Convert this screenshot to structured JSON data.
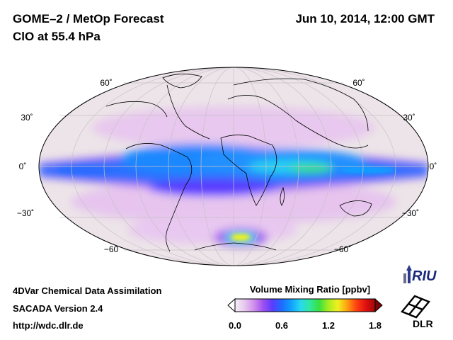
{
  "header": {
    "product_title": "GOME–2 / MetOp Forecast",
    "species_level": "ClO at 55.4 hPa",
    "datetime": "Jun 10, 2014, 12:00 GMT"
  },
  "map": {
    "projection": "Mollweide",
    "latitude_labels_left": [
      "60˚",
      "30˚",
      "0˚",
      "−30˚",
      "−60"
    ],
    "latitude_labels_right": [
      "60˚",
      "30˚",
      "0˚",
      "−30˚",
      "−60˚"
    ]
  },
  "footer": {
    "line1": "4DVar Chemical Data Assimilation",
    "line2": "SACADA Version 2.4",
    "line3": "http://wdc.dlr.de"
  },
  "colorbar": {
    "title": "Volume Mixing Ratio [ppbv]",
    "ticks": [
      "0.0",
      "0.6",
      "1.2",
      "1.8"
    ],
    "colors": [
      "#f4f0f6",
      "#e8c8f0",
      "#d090ec",
      "#a050f0",
      "#5a3cff",
      "#1e6cff",
      "#10a0ff",
      "#28d8f0",
      "#30e8a0",
      "#38e040",
      "#a8ec20",
      "#f0f020",
      "#ffa010",
      "#ff4010",
      "#e01010",
      "#a00808"
    ]
  },
  "logos": {
    "riu": "RIU",
    "dlr": "DLR"
  }
}
